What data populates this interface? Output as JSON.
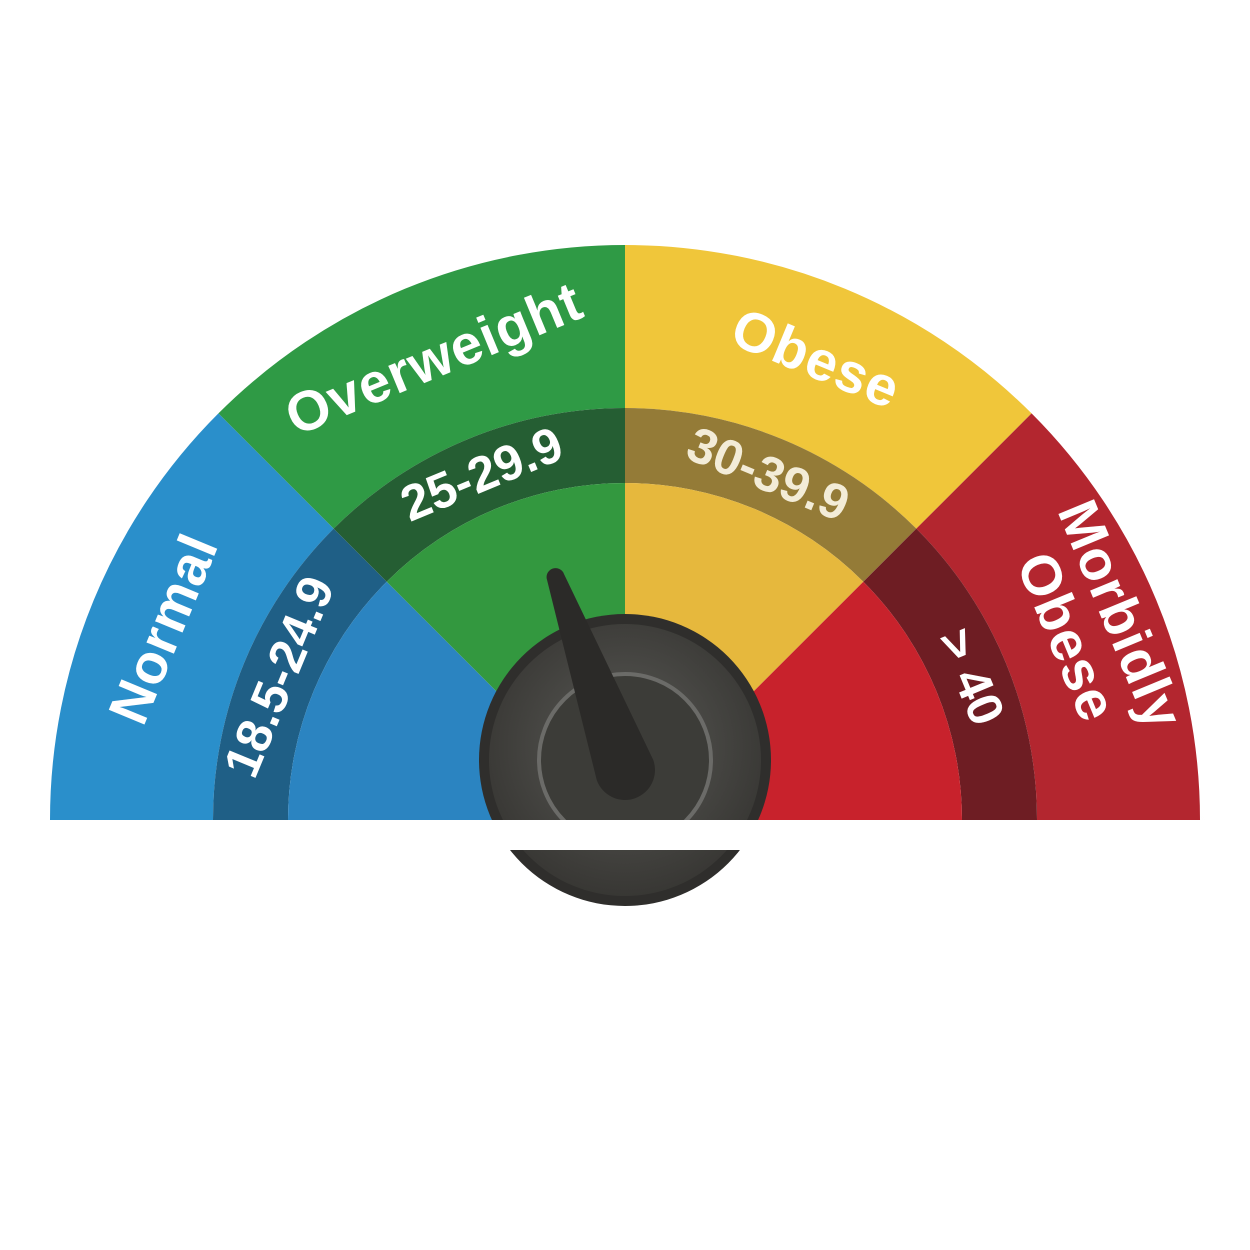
{
  "gauge": {
    "segments": [
      {
        "category": "Normal",
        "range": "18.5-24.9",
        "outer_color": "#2a8fcb",
        "band_color": "#1f5f86",
        "inner_color": "#2b84c1"
      },
      {
        "category": "Overweight",
        "range": "25-29.9",
        "outer_color": "#2f9a45",
        "band_color": "#255e33",
        "inner_color": "#33983f"
      },
      {
        "category": "Obese",
        "range": "30-39.9",
        "outer_color": "#f0c63a",
        "band_color": "#947b37",
        "inner_color": "#e6b83d"
      },
      {
        "category": "Morbidly Obese",
        "category_lines": [
          "Morbidly",
          "Obese"
        ],
        "range": "> 40",
        "outer_color": "#b3262f",
        "band_color": "#6e1d23",
        "inner_color": "#c8222c"
      }
    ],
    "label_color": "#ffffff",
    "range_label_colors": [
      "#ffffff",
      "#ffffff",
      "#f3ecd7",
      "#ffffff"
    ],
    "needle_icon": "gauge-needle-icon",
    "needle_color": "#2b2a28",
    "hub_colors": {
      "outer": "#3a3936",
      "ring": "#6a6a68",
      "inner": "#44443f"
    },
    "pointer_value_fraction": 0.39
  }
}
